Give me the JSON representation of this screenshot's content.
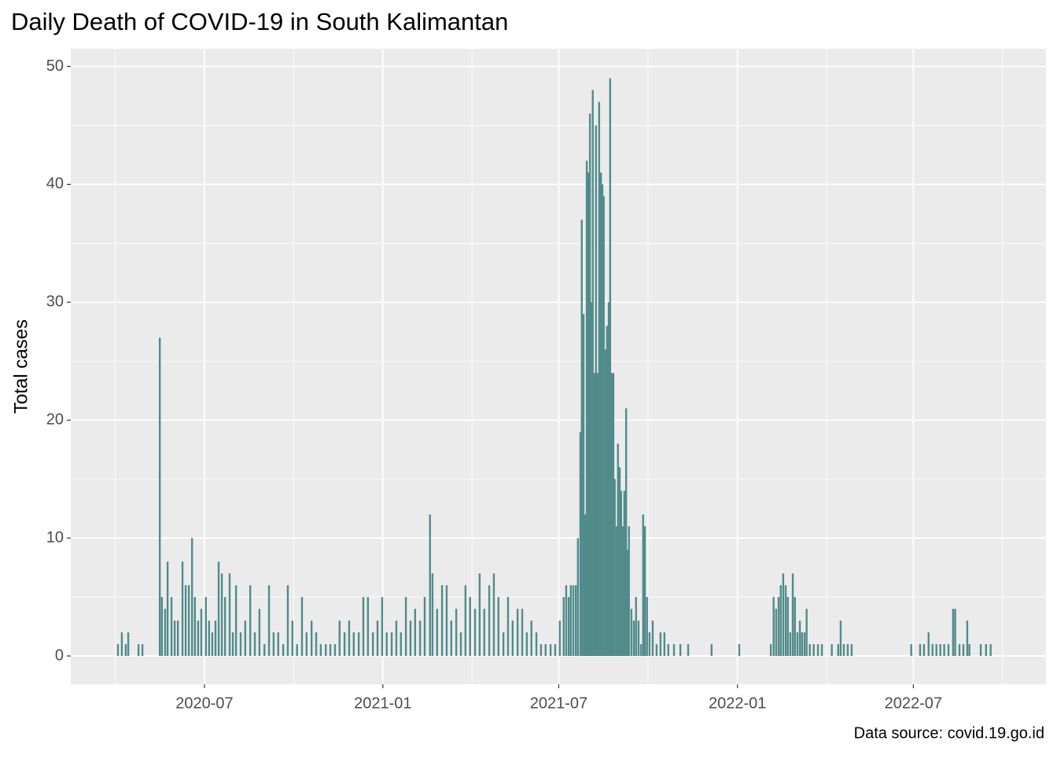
{
  "chart_data": {
    "type": "bar",
    "title": "Daily Death of COVID-19 in South Kalimantan",
    "y_label": "Total cases",
    "caption": "Data source: covid.19.go.id",
    "color": "#528B8B",
    "grid": true,
    "xlim": [
      2020.12,
      2022.87
    ],
    "ylim": [
      -2.4,
      51.5
    ],
    "xticks": [
      {
        "value": 2020.497,
        "label": "2020-07"
      },
      {
        "value": 2021.0,
        "label": "2021-01"
      },
      {
        "value": 2021.496,
        "label": "2021-07"
      },
      {
        "value": 2022.0,
        "label": "2022-01"
      },
      {
        "value": 2022.496,
        "label": "2022-07"
      }
    ],
    "yticks": [
      0,
      10,
      20,
      30,
      40,
      50
    ],
    "x": [
      2020.253,
      2020.264,
      2020.275,
      2020.282,
      2020.311,
      2020.322,
      2020.371,
      2020.377,
      2020.386,
      2020.393,
      2020.404,
      2020.413,
      2020.422,
      2020.435,
      2020.444,
      2020.453,
      2020.462,
      2020.47,
      2020.479,
      2020.488,
      2020.501,
      2020.51,
      2020.519,
      2020.528,
      2020.537,
      2020.546,
      2020.555,
      2020.568,
      2020.577,
      2020.586,
      2020.599,
      2020.612,
      2020.626,
      2020.639,
      2020.652,
      2020.666,
      2020.679,
      2020.692,
      2020.705,
      2020.719,
      2020.732,
      2020.745,
      2020.758,
      2020.772,
      2020.785,
      2020.799,
      2020.812,
      2020.825,
      2020.839,
      2020.852,
      2020.865,
      2020.878,
      2020.892,
      2020.905,
      2020.918,
      2020.932,
      2020.945,
      2020.958,
      2020.972,
      2020.985,
      2020.998,
      2021.011,
      2021.025,
      2021.038,
      2021.051,
      2021.065,
      2021.078,
      2021.091,
      2021.105,
      2021.118,
      2021.133,
      2021.14,
      2021.153,
      2021.167,
      2021.18,
      2021.193,
      2021.207,
      2021.22,
      2021.233,
      2021.246,
      2021.26,
      2021.273,
      2021.286,
      2021.3,
      2021.313,
      2021.326,
      2021.34,
      2021.353,
      2021.366,
      2021.38,
      2021.393,
      2021.406,
      2021.419,
      2021.433,
      2021.446,
      2021.459,
      2021.473,
      2021.486,
      2021.499,
      2021.51,
      2021.517,
      2021.524,
      2021.53,
      2021.537,
      2021.544,
      2021.55,
      2021.557,
      2021.561,
      2021.566,
      2021.57,
      2021.575,
      2021.579,
      2021.584,
      2021.588,
      2021.592,
      2021.597,
      2021.601,
      2021.606,
      2021.61,
      2021.615,
      2021.619,
      2021.623,
      2021.628,
      2021.632,
      2021.637,
      2021.641,
      2021.646,
      2021.65,
      2021.654,
      2021.659,
      2021.663,
      2021.668,
      2021.672,
      2021.677,
      2021.681,
      2021.686,
      2021.69,
      2021.694,
      2021.701,
      2021.708,
      2021.714,
      2021.721,
      2021.728,
      2021.734,
      2021.739,
      2021.745,
      2021.752,
      2021.761,
      2021.772,
      2021.783,
      2021.794,
      2021.805,
      2021.821,
      2021.839,
      2021.861,
      2021.927,
      2022.005,
      2022.094,
      2022.102,
      2022.109,
      2022.116,
      2022.122,
      2022.129,
      2022.136,
      2022.142,
      2022.149,
      2022.156,
      2022.162,
      2022.169,
      2022.176,
      2022.182,
      2022.189,
      2022.195,
      2022.204,
      2022.215,
      2022.227,
      2022.238,
      2022.266,
      2022.284,
      2022.291,
      2022.3,
      2022.311,
      2022.322,
      2022.49,
      2022.515,
      2022.526,
      2022.539,
      2022.55,
      2022.561,
      2022.572,
      2022.583,
      2022.595,
      2022.608,
      2022.614,
      2022.626,
      2022.637,
      2022.648,
      2022.654,
      2022.686,
      2022.701,
      2022.714
    ],
    "values": [
      1,
      2,
      1,
      2,
      1,
      1,
      27,
      5,
      4,
      8,
      5,
      3,
      3,
      8,
      6,
      6,
      10,
      5,
      3,
      4,
      5,
      3,
      2,
      3,
      8,
      7,
      5,
      7,
      2,
      6,
      2,
      3,
      6,
      2,
      4,
      1,
      6,
      2,
      2,
      1,
      6,
      3,
      1,
      5,
      2,
      3,
      2,
      1,
      1,
      1,
      1,
      3,
      2,
      3,
      2,
      2,
      5,
      5,
      2,
      3,
      5,
      2,
      2,
      3,
      2,
      5,
      3,
      4,
      3,
      5,
      12,
      7,
      4,
      6,
      6,
      3,
      4,
      2,
      6,
      5,
      4,
      7,
      4,
      6,
      7,
      5,
      2,
      5,
      3,
      4,
      4,
      2,
      3,
      2,
      1,
      1,
      1,
      1,
      3,
      5,
      6,
      5,
      6,
      6,
      6,
      10,
      19,
      37,
      29,
      12,
      42,
      41,
      46,
      30,
      48,
      24,
      45,
      24,
      47,
      41,
      40,
      39,
      26,
      28,
      30,
      49,
      24,
      24,
      15,
      11,
      18,
      16,
      14,
      11,
      14,
      21,
      9,
      11,
      4,
      3,
      5,
      3,
      1,
      12,
      11,
      5,
      2,
      3,
      1,
      2,
      2,
      1,
      1,
      1,
      1,
      1,
      1,
      1,
      5,
      4,
      5,
      6,
      7,
      6,
      5,
      2,
      7,
      5,
      2,
      3,
      2,
      2,
      4,
      1,
      1,
      1,
      1,
      1,
      1,
      3,
      1,
      1,
      1,
      1,
      1,
      1,
      2,
      1,
      1,
      1,
      1,
      1,
      4,
      4,
      1,
      1,
      3,
      1,
      1,
      1,
      1
    ]
  }
}
